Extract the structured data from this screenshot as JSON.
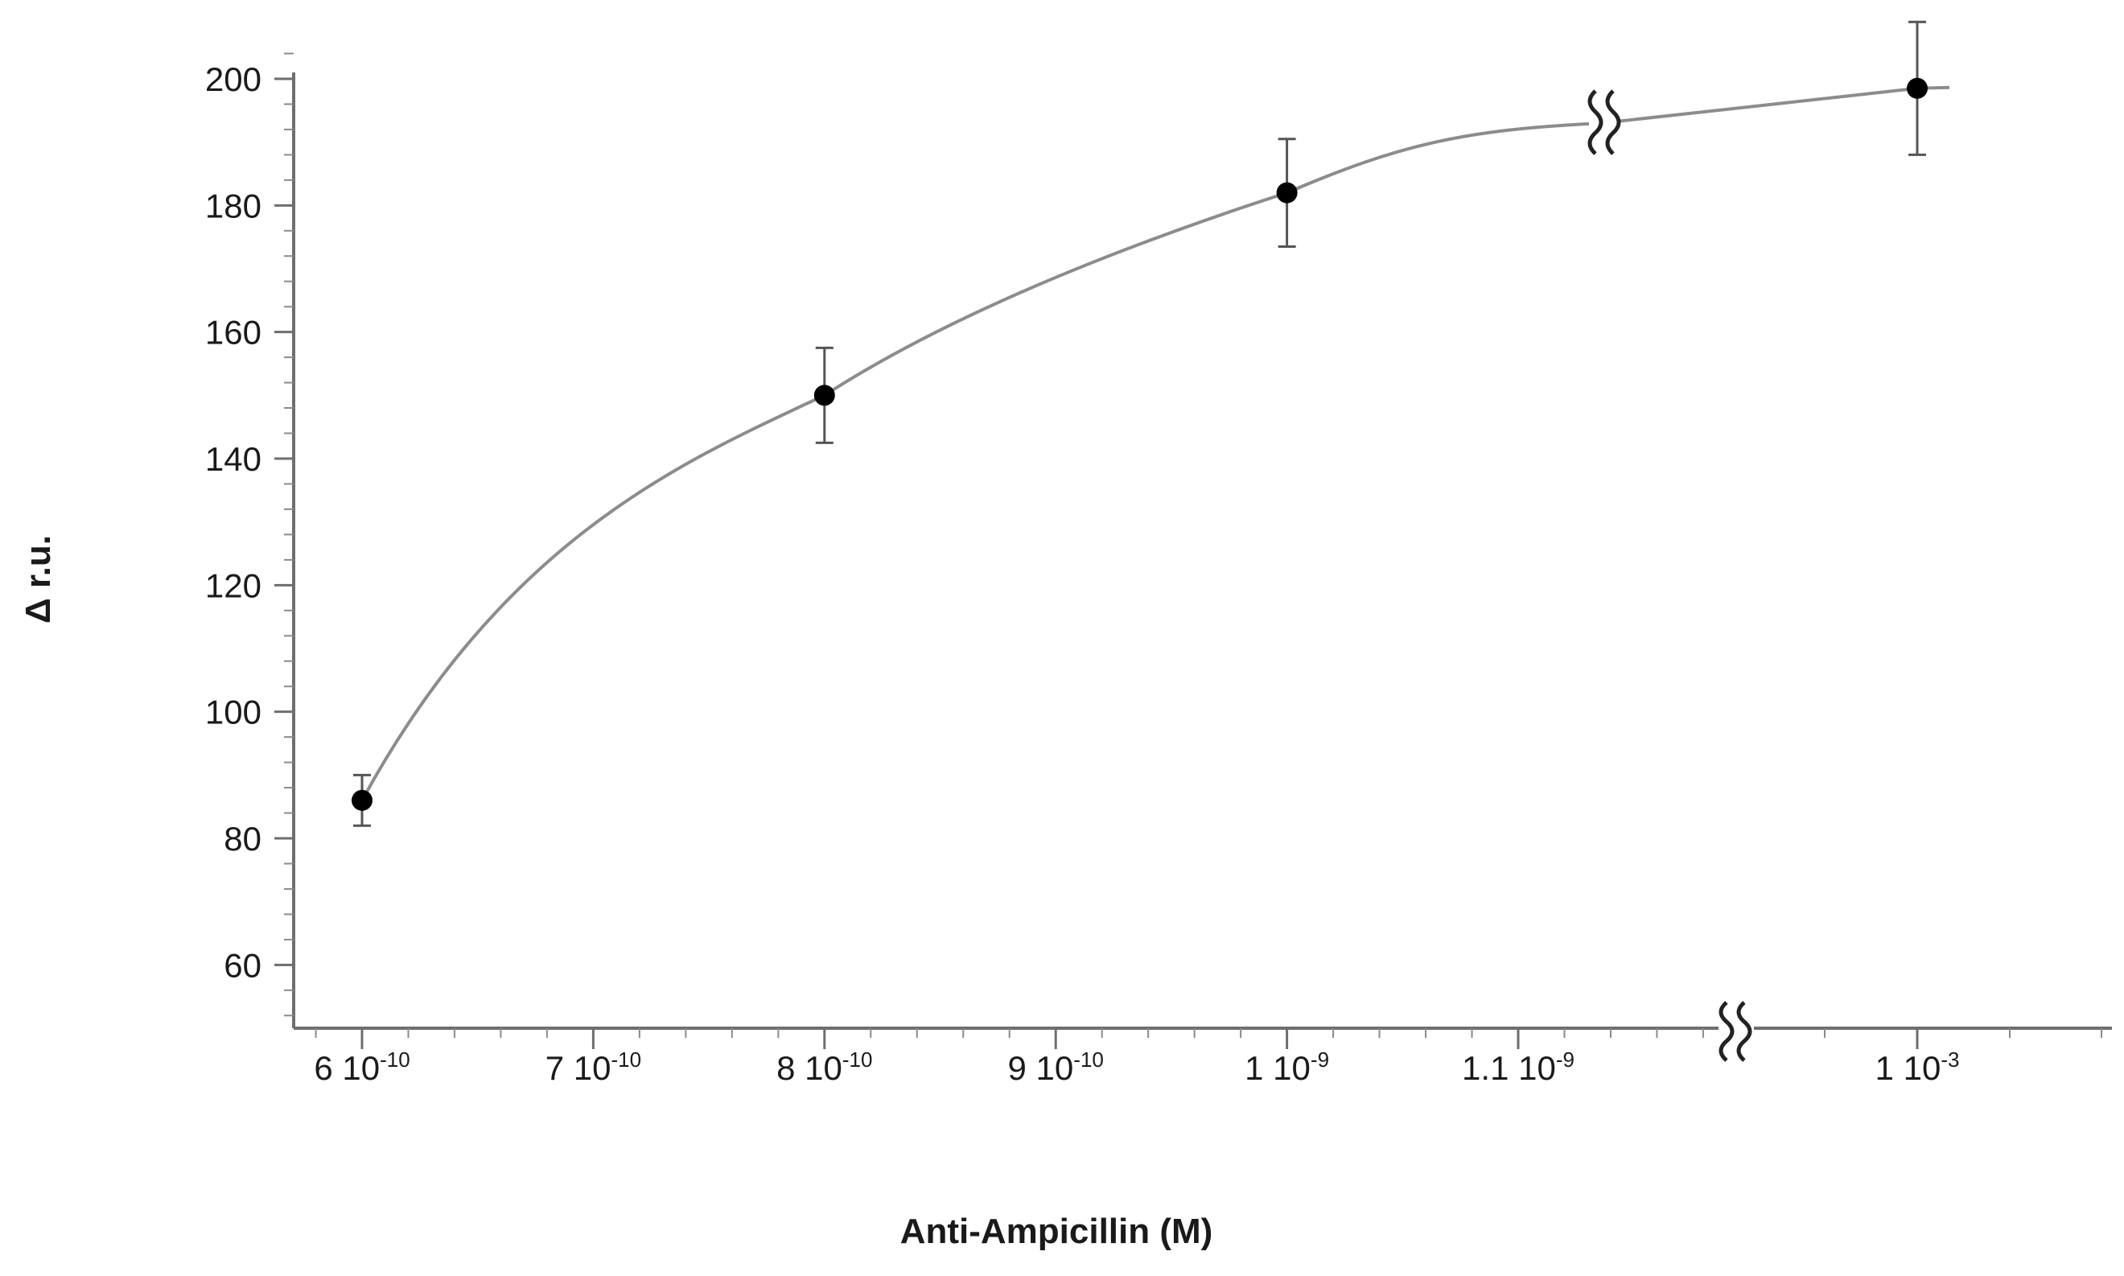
{
  "chart_data": {
    "type": "scatter",
    "xlabel": "Anti-Ampicillin (M)",
    "ylabel": "Δ r.u.",
    "ylim": [
      50,
      205
    ],
    "yticks": [
      60,
      80,
      100,
      120,
      140,
      160,
      180,
      200
    ],
    "x_ticks": [
      {
        "value": "6e-10",
        "base": "6 10",
        "exp": "-10"
      },
      {
        "value": "7e-10",
        "base": "7 10",
        "exp": "-10"
      },
      {
        "value": "8e-10",
        "base": "8 10",
        "exp": "-10"
      },
      {
        "value": "9e-10",
        "base": "9 10",
        "exp": "-10"
      },
      {
        "value": "1e-9",
        "base": "1 10",
        "exp": "-9"
      },
      {
        "value": "1.1e-9",
        "base": "1.1 10",
        "exp": "-9"
      },
      {
        "value": "1e-3",
        "base": "1 10",
        "exp": "-3"
      }
    ],
    "axis_break": "between 1.1 10^-9 and 1 10^-3",
    "grid": false,
    "legend": "none",
    "series": [
      {
        "points": [
          {
            "x": "6e-10",
            "y": 86,
            "err": 4
          },
          {
            "x": "8e-10",
            "y": 150,
            "err": 7.5
          },
          {
            "x": "1e-9",
            "y": 182,
            "err": 8.5
          },
          {
            "x": "1e-3",
            "y": 198.5,
            "err": 10.5
          }
        ],
        "color": "#000000",
        "line_color": "#8c8c8c",
        "fitted_curve": true
      }
    ]
  }
}
